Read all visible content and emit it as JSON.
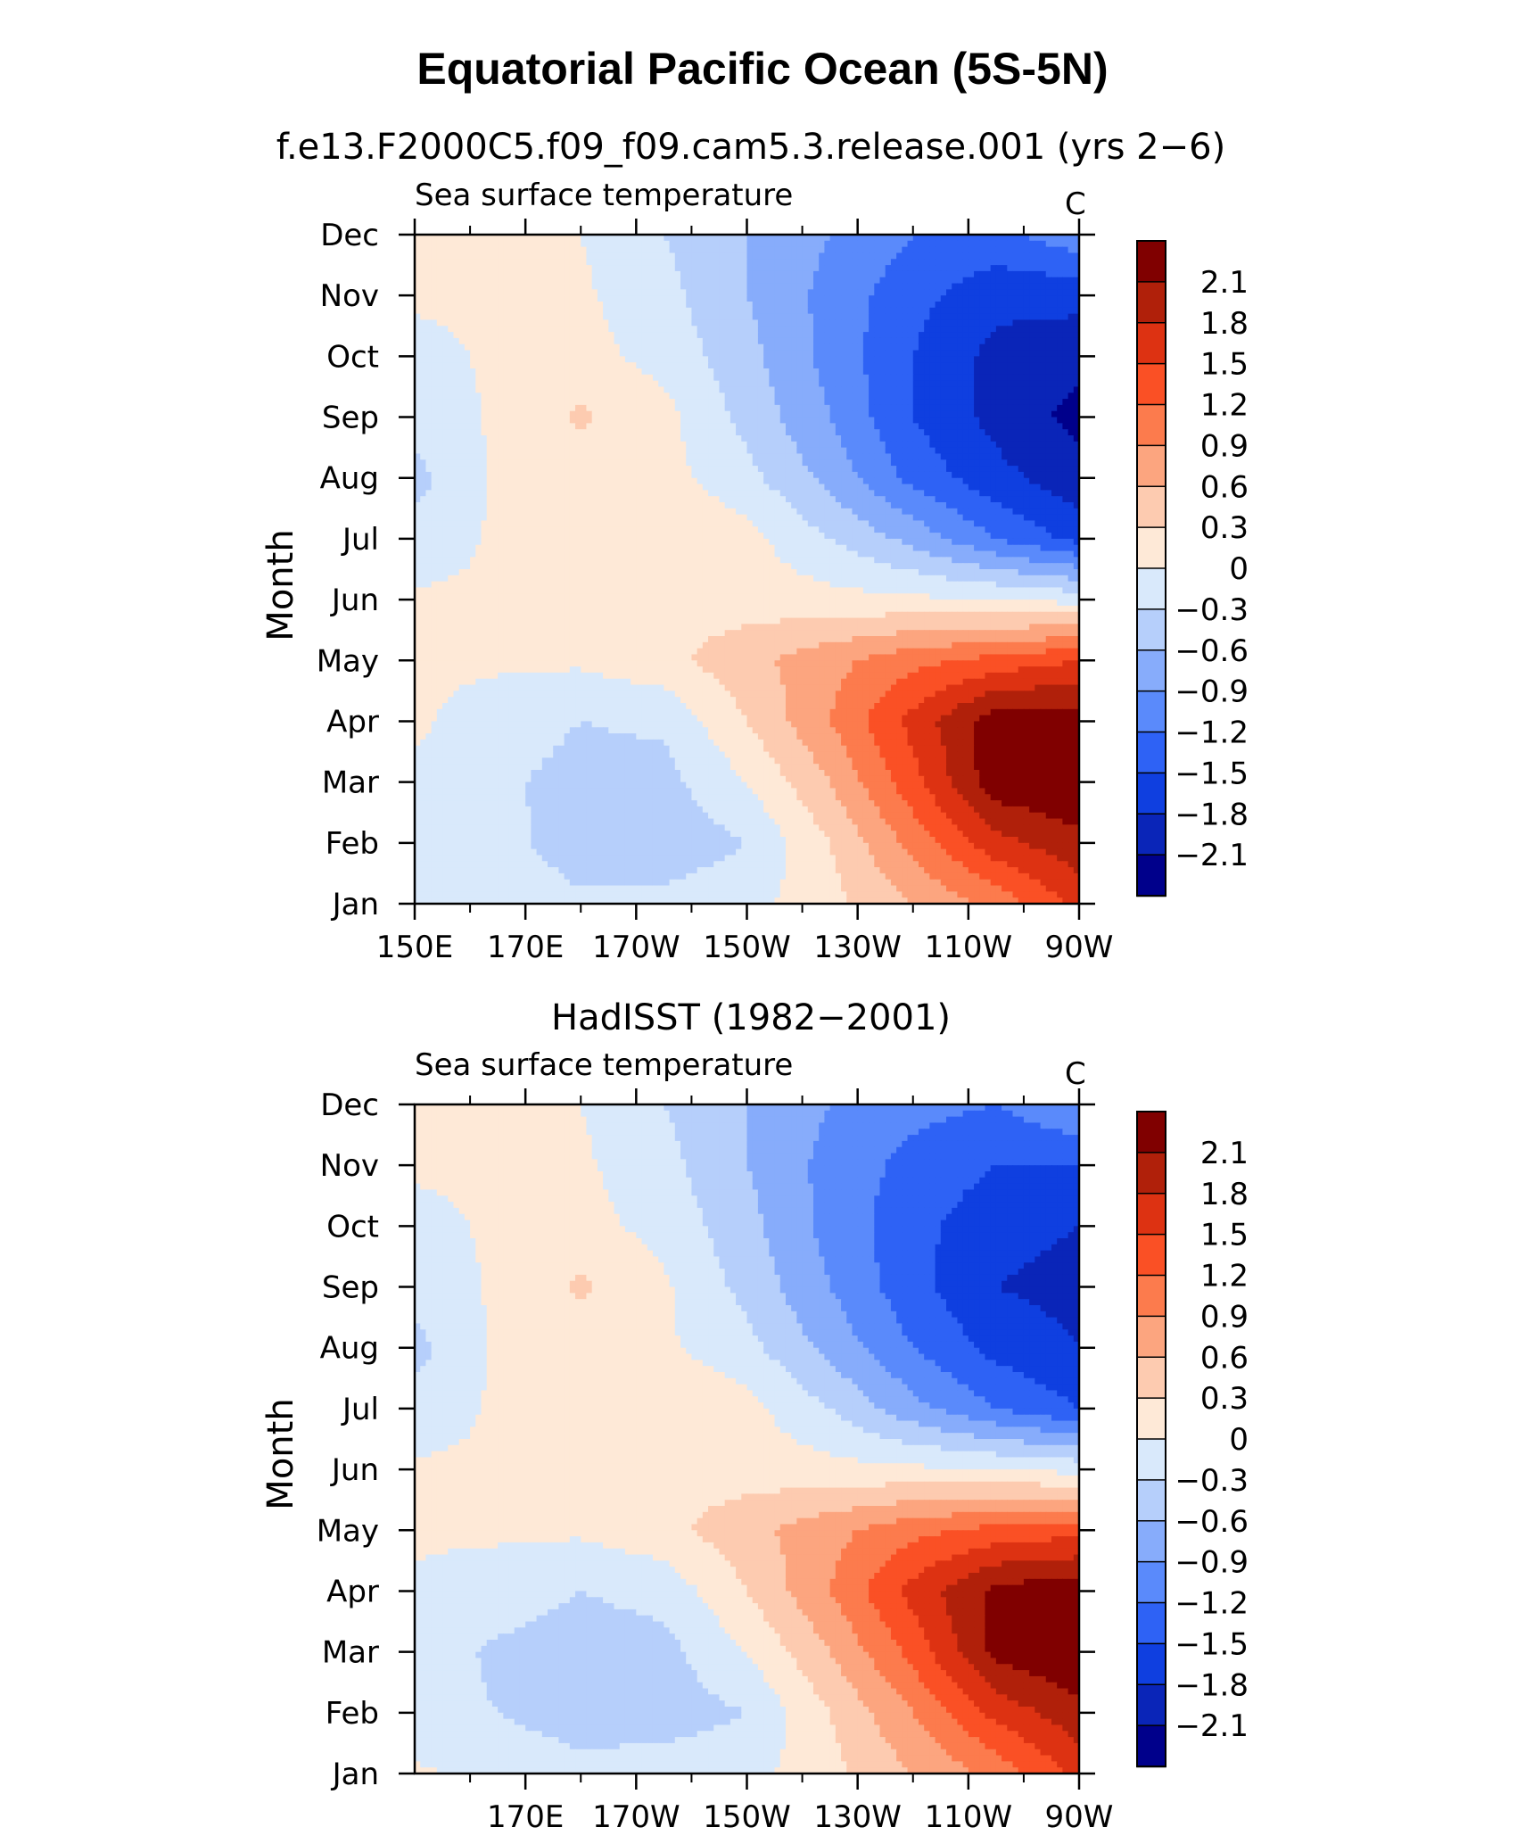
{
  "title": "Equatorial Pacific Ocean (5S-5N)",
  "colorbar": {
    "levels": [
      -2.1,
      -1.8,
      -1.5,
      -1.2,
      -0.9,
      -0.6,
      -0.3,
      0,
      0.3,
      0.6,
      0.9,
      1.2,
      1.5,
      1.8,
      2.1
    ],
    "labels": [
      "2.1",
      "1.8",
      "1.5",
      "1.2",
      "0.9",
      "0.6",
      "0.3",
      "0",
      "−0.3",
      "−0.6",
      "−0.9",
      "−1.2",
      "−1.5",
      "−1.8",
      "−2.1"
    ],
    "colors": [
      "#800000",
      "#b0200a",
      "#dd3212",
      "#fa5025",
      "#fc7b4d",
      "#fca57f",
      "#fdcbb0",
      "#fee9d7",
      "#d9e9fb",
      "#b6cffb",
      "#87acfb",
      "#5a8afb",
      "#2e62f5",
      "#0f3fe0",
      "#0a25b8",
      "#00008b"
    ]
  },
  "chart_data": [
    {
      "type": "heatmap",
      "title": "f.e13.F2000C5.f09_f09.cam5.3.release.001 (yrs 2−6)",
      "subtitle_left": "Sea surface temperature",
      "subtitle_right": "C",
      "ylabel": "Month",
      "xlabel": "",
      "x": [
        "150E",
        "170E",
        "170W",
        "150W",
        "130W",
        "110W",
        "90W"
      ],
      "y": [
        "Jan",
        "Feb",
        "Mar",
        "Apr",
        "May",
        "Jun",
        "Jul",
        "Aug",
        "Sep",
        "Oct",
        "Nov",
        "Dec"
      ],
      "xlim": [
        150,
        270
      ],
      "x_ticks": [
        {
          "lon": 150,
          "label": "150E"
        },
        {
          "lon": 170,
          "label": "170E"
        },
        {
          "lon": 190,
          "label": "170W"
        },
        {
          "lon": 210,
          "label": "150W"
        },
        {
          "lon": 230,
          "label": "130W"
        },
        {
          "lon": 250,
          "label": "110W"
        },
        {
          "lon": 270,
          "label": "90W"
        }
      ],
      "lons": [
        150,
        165,
        180,
        195,
        210,
        225,
        240,
        255,
        270
      ],
      "values": [
        [
          -0.1,
          -0.1,
          -0.25,
          -0.2,
          -0.1,
          0.2,
          0.6,
          1.0,
          1.6
        ],
        [
          -0.2,
          -0.2,
          -0.45,
          -0.5,
          -0.3,
          0.3,
          1.0,
          1.7,
          2.0
        ],
        [
          -0.05,
          -0.25,
          -0.4,
          -0.4,
          0.0,
          0.6,
          1.4,
          2.3,
          2.4
        ],
        [
          0.05,
          -0.15,
          -0.3,
          -0.25,
          0.3,
          0.9,
          1.6,
          2.3,
          2.3
        ],
        [
          0.05,
          0.05,
          0.05,
          0.2,
          0.5,
          0.8,
          1.1,
          1.3,
          1.5
        ],
        [
          0.05,
          0.05,
          0.1,
          0.2,
          0.15,
          0.1,
          0.05,
          0.0,
          -0.1
        ],
        [
          -0.2,
          0.05,
          0.1,
          0.3,
          0.1,
          -0.3,
          -0.7,
          -1.2,
          -1.6
        ],
        [
          -0.4,
          0.05,
          0.1,
          0.1,
          -0.2,
          -0.7,
          -1.3,
          -1.7,
          -2.0
        ],
        [
          -0.2,
          0.05,
          0.35,
          0.1,
          -0.4,
          -0.9,
          -1.5,
          -1.9,
          -2.2
        ],
        [
          -0.1,
          0.05,
          0.1,
          -0.1,
          -0.5,
          -1.0,
          -1.5,
          -1.9,
          -2.0
        ],
        [
          0.05,
          0.05,
          0.05,
          -0.2,
          -0.6,
          -1.0,
          -1.4,
          -1.7,
          -1.7
        ],
        [
          0.05,
          0.05,
          0.0,
          -0.3,
          -0.6,
          -0.9,
          -1.2,
          -1.3,
          -1.0
        ]
      ]
    },
    {
      "type": "heatmap",
      "title": "HadISST (1982−2001)",
      "subtitle_left": "Sea surface temperature",
      "subtitle_right": "C",
      "ylabel": "Month",
      "xlabel": "",
      "x": [
        "170E",
        "170W",
        "150W",
        "130W",
        "110W",
        "90W"
      ],
      "y": [
        "Jan",
        "Feb",
        "Mar",
        "Apr",
        "May",
        "Jun",
        "Jul",
        "Aug",
        "Sep",
        "Oct",
        "Nov",
        "Dec"
      ],
      "xlim": [
        150,
        270
      ],
      "x_ticks": [
        {
          "lon": 170,
          "label": "170E"
        },
        {
          "lon": 190,
          "label": "170W"
        },
        {
          "lon": 210,
          "label": "150W"
        },
        {
          "lon": 230,
          "label": "130W"
        },
        {
          "lon": 250,
          "label": "110W"
        },
        {
          "lon": 270,
          "label": "90W"
        }
      ],
      "lons": [
        150,
        165,
        180,
        195,
        210,
        225,
        240,
        255,
        270
      ],
      "values": [
        [
          0.05,
          -0.1,
          -0.2,
          -0.15,
          -0.1,
          0.2,
          0.6,
          1.0,
          1.6
        ],
        [
          -0.2,
          -0.3,
          -0.45,
          -0.45,
          -0.3,
          0.3,
          0.9,
          1.6,
          2.0
        ],
        [
          -0.15,
          -0.35,
          -0.45,
          -0.4,
          0.0,
          0.6,
          1.3,
          2.2,
          2.4
        ],
        [
          -0.05,
          -0.15,
          -0.3,
          -0.2,
          0.3,
          0.9,
          1.6,
          2.2,
          2.3
        ],
        [
          0.05,
          0.05,
          0.05,
          0.2,
          0.5,
          0.8,
          1.1,
          1.3,
          1.4
        ],
        [
          0.05,
          0.05,
          0.1,
          0.2,
          0.15,
          0.1,
          0.05,
          0.0,
          -0.1
        ],
        [
          -0.2,
          0.05,
          0.1,
          0.3,
          0.1,
          -0.3,
          -0.8,
          -1.2,
          -1.5
        ],
        [
          -0.4,
          0.05,
          0.1,
          0.05,
          -0.2,
          -0.7,
          -1.2,
          -1.6,
          -1.8
        ],
        [
          -0.2,
          0.05,
          0.35,
          0.05,
          -0.4,
          -0.9,
          -1.4,
          -1.8,
          -1.9
        ],
        [
          -0.1,
          0.05,
          0.1,
          -0.1,
          -0.5,
          -1.0,
          -1.4,
          -1.7,
          -1.8
        ],
        [
          0.05,
          0.05,
          0.05,
          -0.2,
          -0.6,
          -1.0,
          -1.3,
          -1.5,
          -1.5
        ],
        [
          0.05,
          0.05,
          0.0,
          -0.3,
          -0.6,
          -0.9,
          -1.1,
          -1.2,
          -0.9
        ]
      ]
    }
  ]
}
